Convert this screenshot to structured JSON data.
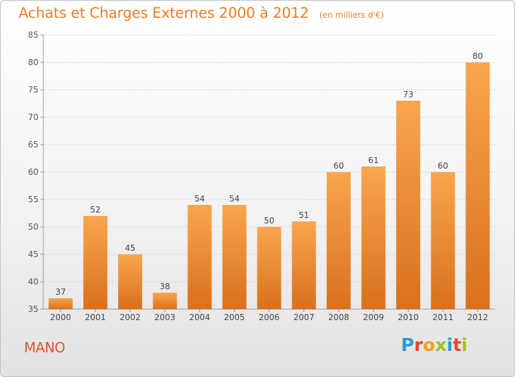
{
  "chart_data": {
    "type": "bar",
    "title": "Achats et Charges Externes 2000 à 2012",
    "unit_label": "(en milliers d'€)",
    "categories": [
      "2000",
      "2001",
      "2002",
      "2003",
      "2004",
      "2005",
      "2006",
      "2007",
      "2008",
      "2009",
      "2010",
      "2011",
      "2012"
    ],
    "values": [
      37,
      52,
      45,
      38,
      54,
      54,
      50,
      51,
      60,
      61,
      73,
      60,
      80
    ],
    "ylim": [
      35,
      85
    ],
    "yticks": [
      35,
      40,
      45,
      50,
      55,
      60,
      65,
      70,
      75,
      80,
      85
    ],
    "grid": true,
    "bar_color": "#f0963c"
  },
  "commune": "MANO",
  "logo": {
    "letters": [
      {
        "char": "P",
        "color": "#2a9bd6"
      },
      {
        "char": "r",
        "color": "#e8482a"
      },
      {
        "char": "o",
        "color": "#f6a11a"
      },
      {
        "char": "x",
        "color": "#9cc31e"
      },
      {
        "char": "i",
        "color": "#2a9bd6"
      },
      {
        "char": "t",
        "color": "#e8482a"
      },
      {
        "char": "i",
        "color": "#9cc31e"
      }
    ]
  }
}
